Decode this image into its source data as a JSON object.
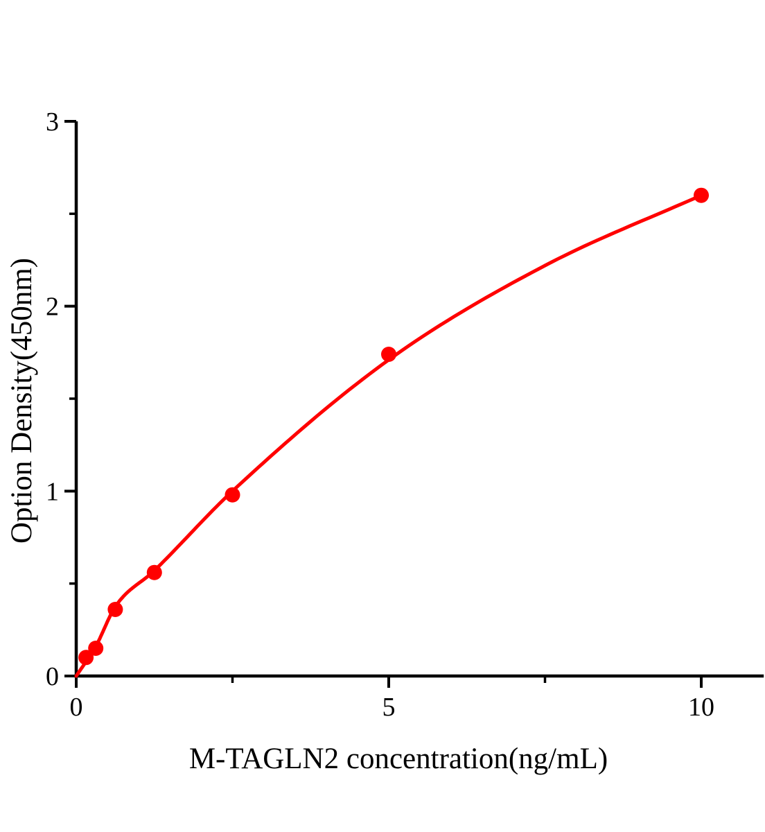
{
  "chart_data": {
    "type": "scatter",
    "title": "",
    "xlabel": "M-TAGLN2 concentration(ng/mL)",
    "ylabel": "Option Density(450nm)",
    "xlim": [
      0,
      11
    ],
    "ylim": [
      0,
      3
    ],
    "x_ticks_major": [
      0,
      5,
      10
    ],
    "x_ticks_minor": [
      2.5,
      7.5
    ],
    "y_ticks_major": [
      0,
      1,
      2,
      3
    ],
    "y_ticks_minor": [
      0.5,
      1.5,
      2.5
    ],
    "grid": false,
    "legend": false,
    "axis_color": "#000000",
    "background_color": "#FFFFFF",
    "series": [
      {
        "marker": "circle",
        "marker_color": "#FF0000",
        "line_color": "#FF0000",
        "points": [
          {
            "x": 0.156,
            "y": 0.1
          },
          {
            "x": 0.3125,
            "y": 0.15
          },
          {
            "x": 0.625,
            "y": 0.36
          },
          {
            "x": 1.25,
            "y": 0.56
          },
          {
            "x": 2.5,
            "y": 0.98
          },
          {
            "x": 5,
            "y": 1.74
          },
          {
            "x": 10,
            "y": 2.6
          }
        ],
        "fit_curve": [
          {
            "x": 0,
            "y": 0
          },
          {
            "x": 0.3125,
            "y": 0.16
          },
          {
            "x": 0.625,
            "y": 0.375
          },
          {
            "x": 1.25,
            "y": 0.57
          },
          {
            "x": 2.5,
            "y": 1.0
          },
          {
            "x": 5,
            "y": 1.71
          },
          {
            "x": 7.5,
            "y": 2.22
          },
          {
            "x": 10,
            "y": 2.6
          }
        ]
      }
    ]
  }
}
